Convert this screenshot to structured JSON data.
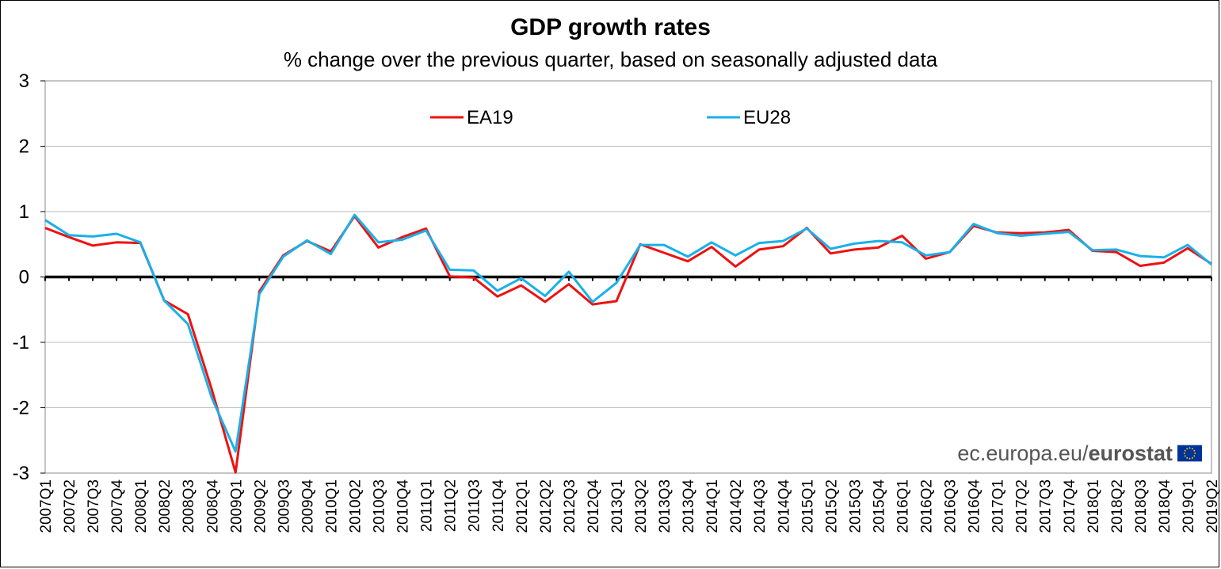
{
  "chart_data": {
    "type": "line",
    "title": "GDP growth rates",
    "subtitle": "% change over the previous quarter, based on seasonally adjusted data",
    "ylim": [
      -3,
      3
    ],
    "yticks": [
      "3",
      "2",
      "1",
      "0",
      "-1",
      "-2",
      "-3"
    ],
    "grid": true,
    "legend_position": "top",
    "categories": [
      "2007Q1",
      "2007Q2",
      "2007Q3",
      "2007Q4",
      "2008Q1",
      "2008Q2",
      "2008Q3",
      "2008Q4",
      "2009Q1",
      "2009Q2",
      "2009Q3",
      "2009Q4",
      "2010Q1",
      "2010Q2",
      "2010Q3",
      "2010Q4",
      "2011Q1",
      "2011Q2",
      "2011Q3",
      "2011Q4",
      "2012Q1",
      "2012Q2",
      "2012Q3",
      "2012Q4",
      "2013Q1",
      "2013Q2",
      "2013Q3",
      "2013Q4",
      "2014Q1",
      "2014Q2",
      "2014Q3",
      "2014Q4",
      "2015Q1",
      "2015Q2",
      "2015Q3",
      "2015Q4",
      "2016Q1",
      "2016Q2",
      "2016Q3",
      "2016Q4",
      "2017Q1",
      "2017Q2",
      "2017Q3",
      "2017Q4",
      "2018Q1",
      "2018Q2",
      "2018Q3",
      "2018Q4",
      "2019Q1",
      "2019Q2"
    ],
    "series": [
      {
        "name": "EA19",
        "color": "#ee1111",
        "values": [
          0.75,
          0.61,
          0.48,
          0.53,
          0.52,
          -0.36,
          -0.57,
          -1.72,
          -2.99,
          -0.22,
          0.33,
          0.55,
          0.39,
          0.93,
          0.45,
          0.61,
          0.74,
          0.01,
          -0.01,
          -0.3,
          -0.13,
          -0.38,
          -0.11,
          -0.42,
          -0.37,
          0.5,
          0.37,
          0.24,
          0.46,
          0.16,
          0.42,
          0.47,
          0.75,
          0.36,
          0.42,
          0.45,
          0.63,
          0.28,
          0.38,
          0.78,
          0.68,
          0.67,
          0.68,
          0.72,
          0.4,
          0.38,
          0.17,
          0.22,
          0.44,
          0.2
        ]
      },
      {
        "name": "EU28",
        "color": "#1ab0e8",
        "values": [
          0.87,
          0.64,
          0.62,
          0.66,
          0.53,
          -0.36,
          -0.72,
          -1.85,
          -2.67,
          -0.26,
          0.31,
          0.56,
          0.35,
          0.95,
          0.53,
          0.57,
          0.71,
          0.11,
          0.1,
          -0.21,
          -0.02,
          -0.29,
          0.08,
          -0.38,
          -0.09,
          0.49,
          0.49,
          0.31,
          0.53,
          0.33,
          0.52,
          0.55,
          0.74,
          0.43,
          0.51,
          0.55,
          0.53,
          0.33,
          0.38,
          0.81,
          0.67,
          0.63,
          0.66,
          0.69,
          0.41,
          0.42,
          0.32,
          0.3,
          0.49,
          0.19
        ]
      }
    ]
  },
  "source": {
    "plain": "ec.europa.eu/",
    "brand": "eurostat"
  }
}
